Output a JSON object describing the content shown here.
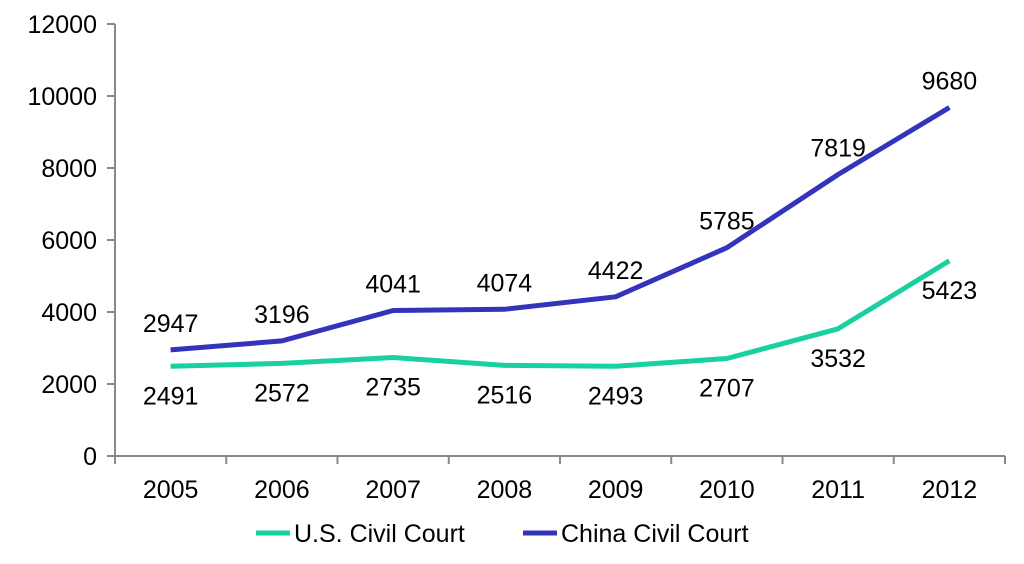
{
  "chart_data": {
    "type": "line",
    "categories": [
      "2005",
      "2006",
      "2007",
      "2008",
      "2009",
      "2010",
      "2011",
      "2012"
    ],
    "ylim": [
      0,
      12000
    ],
    "yticks": [
      0,
      2000,
      4000,
      6000,
      8000,
      10000,
      12000
    ],
    "grid": false,
    "legend_position": "bottom",
    "series": [
      {
        "name": "U.S. Civil Court",
        "color": "#19D0A0",
        "values": [
          2491,
          2572,
          2735,
          2516,
          2493,
          2707,
          3532,
          5423
        ],
        "label_placement": "below"
      },
      {
        "name": "China Civil Court",
        "color": "#3333BB",
        "values": [
          2947,
          3196,
          4041,
          4074,
          4422,
          5785,
          7819,
          9680
        ],
        "label_placement": "above"
      }
    ]
  }
}
